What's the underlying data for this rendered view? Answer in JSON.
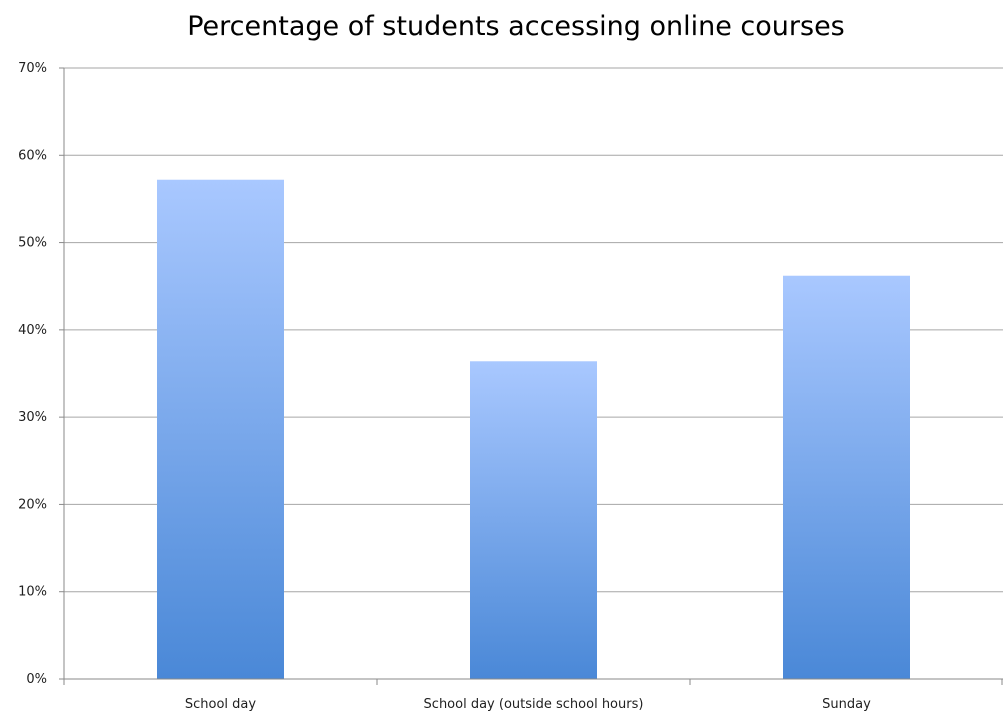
{
  "chart_data": {
    "type": "bar",
    "title": "Percentage of students accessing online courses",
    "categories": [
      "School day",
      "School day (outside school hours)",
      "Sunday"
    ],
    "values": [
      57.2,
      36.4,
      46.2
    ],
    "value_unit": "%",
    "xlabel": "",
    "ylabel": "",
    "ylim": [
      0,
      70
    ],
    "yticks": [
      0,
      10,
      20,
      30,
      40,
      50,
      60,
      70
    ],
    "ytick_labels": [
      "0%",
      "10%",
      "20%",
      "30%",
      "40%",
      "50%",
      "60%",
      "70%"
    ],
    "grid": true,
    "legend": "none",
    "colors": {
      "bar_top": "#a9c8ff",
      "bar_bottom": "#4a88d7",
      "grid": "#a6a6a6",
      "axis": "#8a8a8a",
      "text": "#1f1f1f"
    }
  }
}
